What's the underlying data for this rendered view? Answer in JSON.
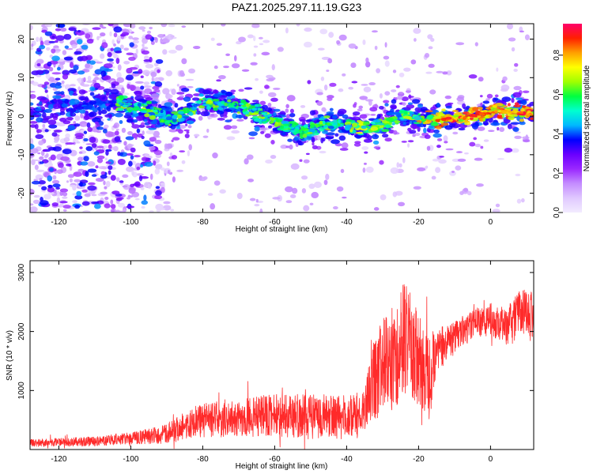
{
  "figure_title": "PAZ1.2025.297.11.19.G23",
  "colors": {
    "snr_line": "#ff2a2a",
    "background": "#ffffff",
    "axis": "#000000"
  },
  "chart_data": [
    {
      "type": "heatmap",
      "title": "PAZ1.2025.297.11.19.G23",
      "xlabel": "Height of straight line (km)",
      "ylabel": "Frequency (Hz)",
      "xlim": [
        -128,
        12
      ],
      "ylim": [
        -25,
        24
      ],
      "x_ticks": [
        -120,
        -100,
        -80,
        -60,
        -40,
        -20,
        0
      ],
      "y_ticks": [
        -20,
        -10,
        0,
        10,
        20
      ],
      "colorbar": {
        "label": "Normalized spectral amplitude",
        "range": [
          0,
          0.96
        ],
        "ticks": [
          0,
          0.2,
          0.4,
          0.6,
          0.8
        ],
        "tick_labels": [
          "0.0",
          "0.2",
          "0.4",
          "0.6",
          "0.8"
        ],
        "colormap": [
          "#f2ecff",
          "#e0c8ff",
          "#c48cff",
          "#9a28ff",
          "#6a00ff",
          "#0000ff",
          "#00b8ff",
          "#00ffd0",
          "#00ff40",
          "#a0ff00",
          "#ffff00",
          "#ffa000",
          "#ff2000",
          "#ff006a"
        ]
      },
      "ridge": {
        "description": "dominant frequency track",
        "height_km": [
          -124,
          -112,
          -104,
          -96,
          -88,
          -80,
          -72,
          -66,
          -60,
          -56,
          -52,
          -46,
          -40,
          -34,
          -28,
          -24,
          -20,
          -14,
          -8,
          -2,
          2,
          6,
          12
        ],
        "frequency_hz": [
          2.0,
          3.5,
          3.5,
          1.5,
          -1.0,
          3.5,
          3.0,
          1.5,
          -1.0,
          -3.0,
          -4.5,
          -2.0,
          -2.0,
          -3.5,
          -1.5,
          0.5,
          -1.0,
          -1.0,
          -0.5,
          0.5,
          1.5,
          1.0,
          0.5
        ]
      }
    },
    {
      "type": "line",
      "xlabel": "Height of straight line (km)",
      "ylabel": "SNR (10 * v/v)",
      "xlim": [
        -128,
        12
      ],
      "ylim": [
        0,
        3200
      ],
      "x_ticks": [
        -120,
        -100,
        -80,
        -60,
        -40,
        -20,
        0
      ],
      "y_ticks": [
        1000,
        2000,
        3000
      ],
      "series": [
        {
          "name": "SNR",
          "color": "#ff2a2a",
          "envelope": {
            "height_km": [
              -128,
              -110,
              -100,
              -90,
              -85,
              -80,
              -70,
              -60,
              -50,
              -40,
              -35,
              -33,
              -30,
              -26,
              -24,
              -20,
              -17,
              -15,
              -12,
              -8,
              -4,
              0,
              4,
              8,
              12
            ],
            "snr_mean": [
              110,
              140,
              190,
              260,
              420,
              500,
              560,
              580,
              560,
              540,
              620,
              1100,
              1400,
              1600,
              1900,
              1500,
              1200,
              1700,
              1800,
              2000,
              2150,
              2200,
              2000,
              2300,
              2350
            ],
            "snr_spread": [
              70,
              90,
              110,
              180,
              260,
              320,
              380,
              400,
              420,
              420,
              450,
              700,
              900,
              1000,
              1100,
              900,
              800,
              450,
              350,
              300,
              280,
              300,
              400,
              450,
              500
            ]
          }
        }
      ]
    }
  ]
}
